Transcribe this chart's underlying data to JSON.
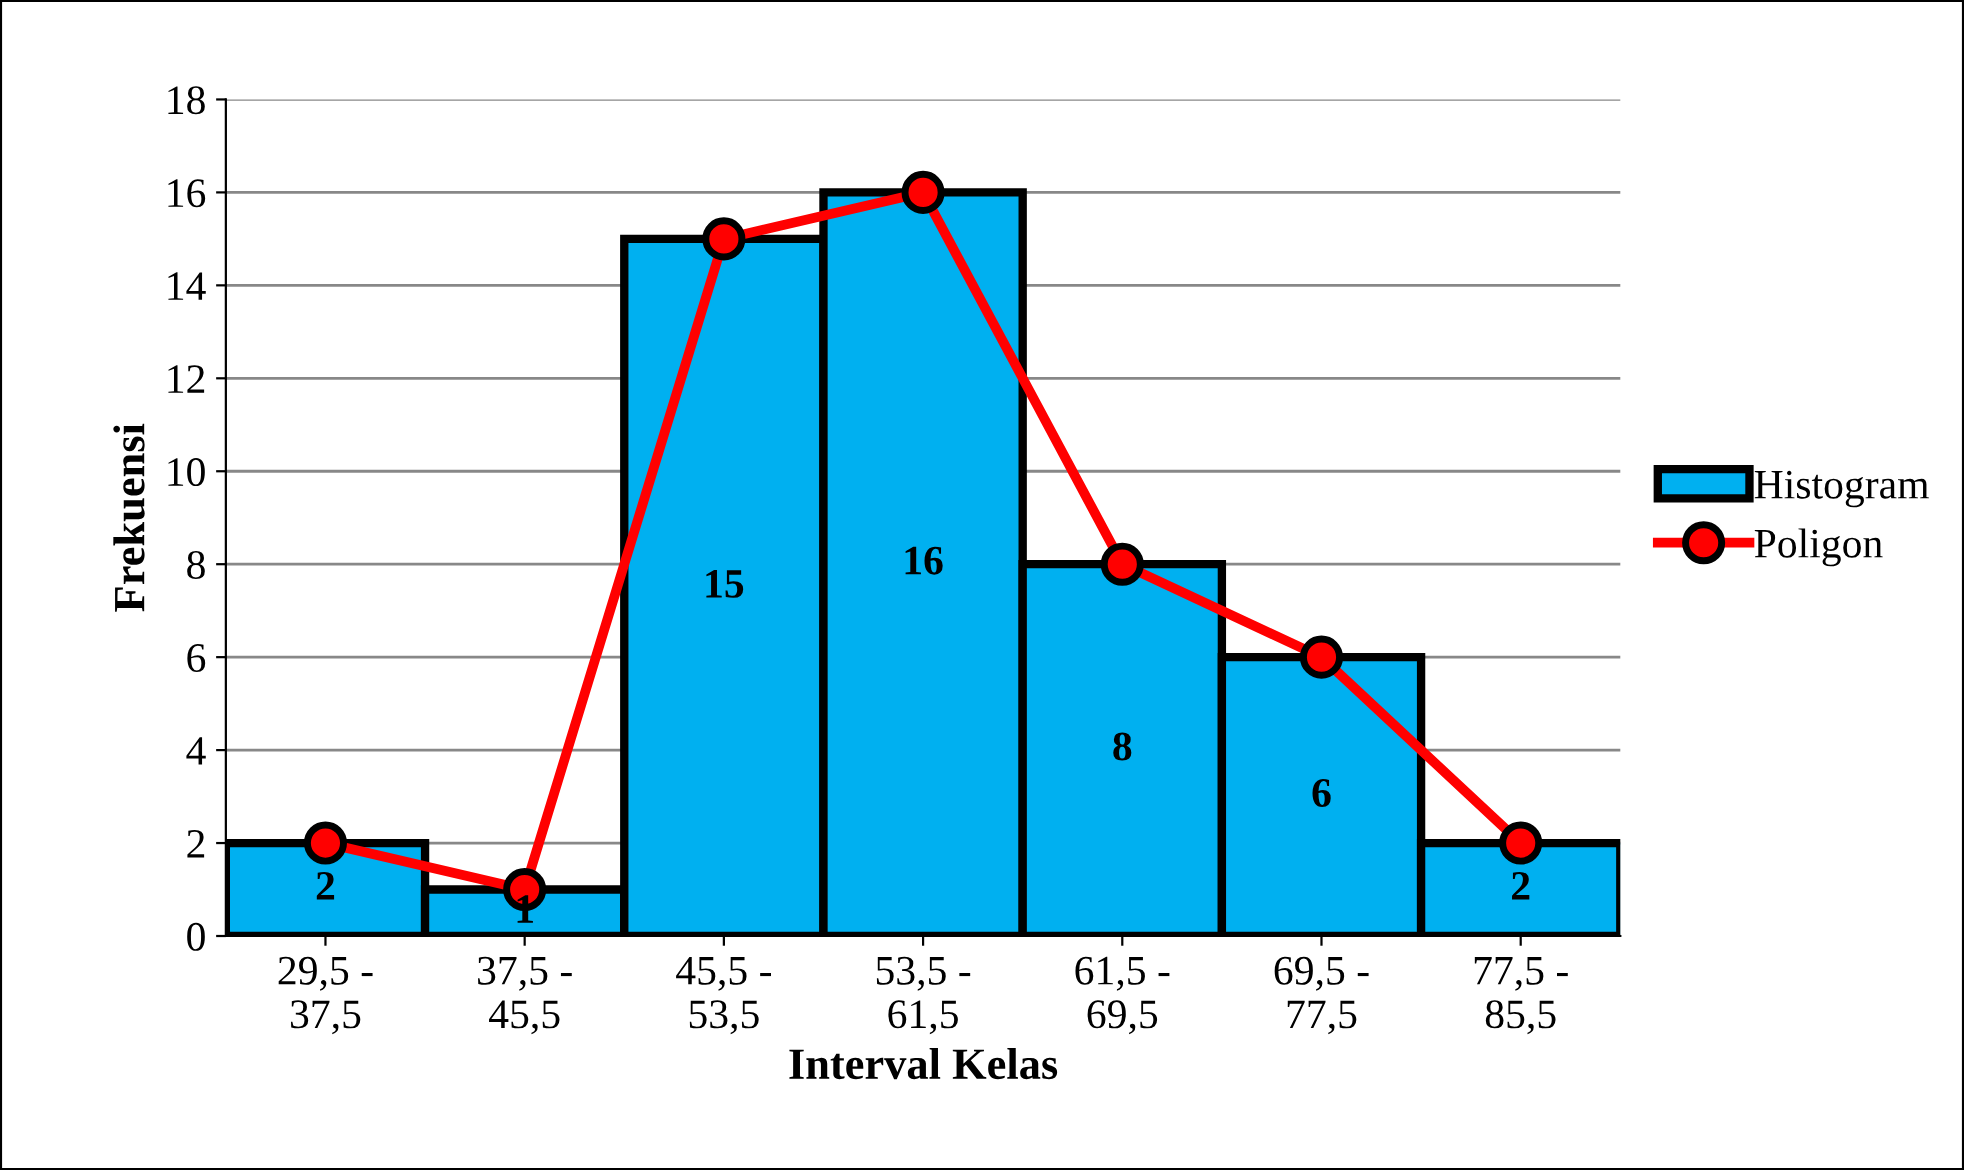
{
  "chart_data": {
    "type": "bar",
    "xlabel": "Interval Kelas",
    "ylabel": "Frekuensi",
    "categories": [
      "29,5 -\n37,5",
      "37,5 -\n45,5",
      "45,5 -\n53,5",
      "53,5 -\n61,5",
      "61,5 -\n69,5",
      "69,5 -\n77,5",
      "77,5 -\n85,5"
    ],
    "series": [
      {
        "name": "Histogram",
        "color": "#00b0f0",
        "values": [
          2,
          1,
          15,
          16,
          8,
          6,
          2
        ],
        "value_labels": [
          "2",
          "1",
          "15",
          "16",
          "8",
          "6",
          "2"
        ]
      },
      {
        "name": "Poligon",
        "type": "line",
        "color": "#ff0000",
        "values": [
          2,
          1,
          15,
          16,
          8,
          6,
          2
        ],
        "marker": "circle",
        "line_style": "solid"
      }
    ],
    "ylim": [
      0,
      18
    ],
    "yticks": [
      0,
      2,
      4,
      6,
      8,
      10,
      12,
      14,
      16,
      18
    ],
    "grid": "y",
    "legend": "right"
  }
}
